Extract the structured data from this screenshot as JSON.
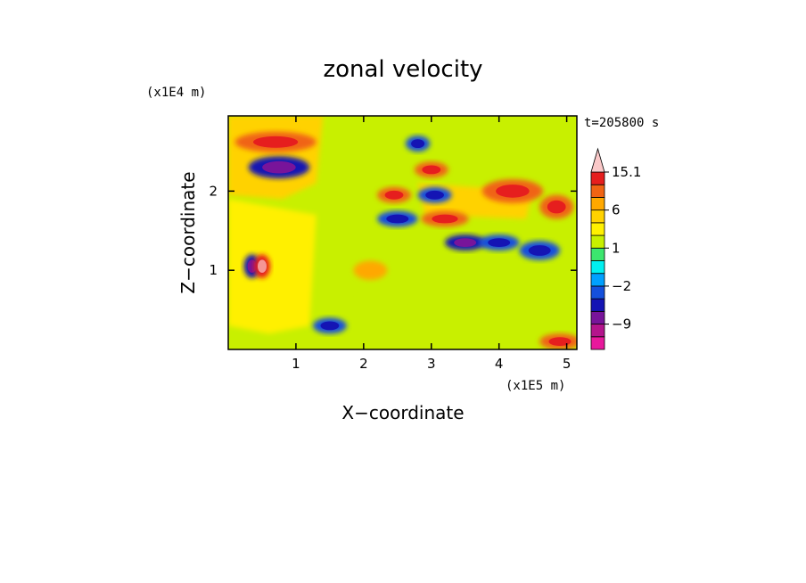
{
  "chart_data": {
    "type": "heatmap",
    "title": "zonal velocity",
    "xlabel": "X−coordinate",
    "ylabel": "Z−coordinate",
    "x_scale_label": "(x1E5 m)",
    "y_scale_label": "(x1E4 m)",
    "time_label": "t=205800 s",
    "xlim": [
      0,
      5.15
    ],
    "ylim": [
      0,
      2.95
    ],
    "x_ticks": [
      1,
      2,
      3,
      4,
      5
    ],
    "x_tick_labels": [
      "1",
      "2",
      "3",
      "4",
      "5"
    ],
    "y_ticks": [
      1,
      2
    ],
    "y_tick_labels": [
      "1",
      "2"
    ],
    "colorbar": {
      "levels": [
        -15,
        -12,
        -9,
        -6,
        -4,
        -2,
        -1,
        0,
        1,
        2,
        4,
        6,
        9,
        12,
        15.1
      ],
      "colors": [
        "#e8189c",
        "#b4148c",
        "#78149a",
        "#1414b4",
        "#1450dc",
        "#00a0ff",
        "#00f0f0",
        "#3ce66e",
        "#c8f000",
        "#fff000",
        "#ffd200",
        "#ffa800",
        "#f06414",
        "#e61e1e",
        "#f59696",
        "#fac8c8"
      ],
      "tick_labels": [
        {
          "label": "15.1",
          "value": 15.1
        },
        {
          "label": "6",
          "value": 6
        },
        {
          "label": "1",
          "value": 1
        },
        {
          "label": "−2",
          "value": -2
        },
        {
          "label": "−9",
          "value": -9
        }
      ],
      "extend_max": true
    },
    "features": [
      {
        "x": 0.75,
        "z": 2.3,
        "value": -9,
        "rx": 0.45,
        "rz": 0.14
      },
      {
        "x": 0.7,
        "z": 2.62,
        "value": 6,
        "rx": 0.6,
        "rz": 0.13
      },
      {
        "x": 2.8,
        "z": 2.6,
        "value": -6,
        "rx": 0.18,
        "rz": 0.1
      },
      {
        "x": 3.0,
        "z": 2.27,
        "value": 6,
        "rx": 0.25,
        "rz": 0.1
      },
      {
        "x": 3.05,
        "z": 1.95,
        "value": -6,
        "rx": 0.25,
        "rz": 0.1
      },
      {
        "x": 2.45,
        "z": 1.95,
        "value": 6,
        "rx": 0.25,
        "rz": 0.1
      },
      {
        "x": 2.5,
        "z": 1.65,
        "value": -6,
        "rx": 0.3,
        "rz": 0.1
      },
      {
        "x": 3.2,
        "z": 1.65,
        "value": 6,
        "rx": 0.35,
        "rz": 0.1
      },
      {
        "x": 3.5,
        "z": 1.35,
        "value": -9,
        "rx": 0.3,
        "rz": 0.1
      },
      {
        "x": 4.0,
        "z": 1.35,
        "value": -6,
        "rx": 0.3,
        "rz": 0.1
      },
      {
        "x": 4.6,
        "z": 1.25,
        "value": -6,
        "rx": 0.3,
        "rz": 0.12
      },
      {
        "x": 4.2,
        "z": 2.0,
        "value": 6,
        "rx": 0.45,
        "rz": 0.15
      },
      {
        "x": 4.85,
        "z": 1.8,
        "value": 6,
        "rx": 0.25,
        "rz": 0.15
      },
      {
        "x": 0.35,
        "z": 1.05,
        "value": -9,
        "rx": 0.12,
        "rz": 0.15
      },
      {
        "x": 0.5,
        "z": 1.05,
        "value": 9,
        "rx": 0.12,
        "rz": 0.15
      },
      {
        "x": 2.1,
        "z": 1.0,
        "value": 4,
        "rx": 0.25,
        "rz": 0.12
      },
      {
        "x": 2.3,
        "z": 0.45,
        "value": 0,
        "rx": 0.45,
        "rz": 0.3
      },
      {
        "x": 3.8,
        "z": 0.45,
        "value": 0,
        "rx": 0.6,
        "rz": 0.3
      },
      {
        "x": 1.5,
        "z": 0.3,
        "value": -6,
        "rx": 0.25,
        "rz": 0.1
      },
      {
        "x": 4.9,
        "z": 0.1,
        "value": 6,
        "rx": 0.3,
        "rz": 0.1
      }
    ]
  }
}
